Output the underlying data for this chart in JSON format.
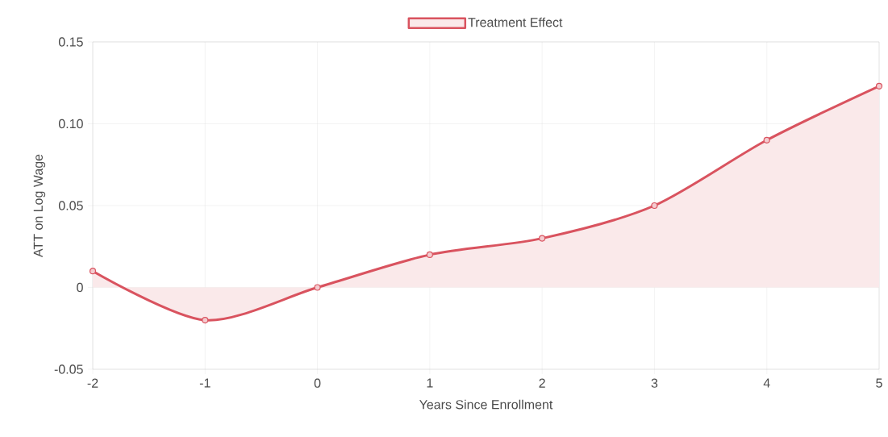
{
  "chart_data": {
    "type": "area",
    "xlabel": "Years Since Enrollment",
    "ylabel": "ATT on Log Wage",
    "x": [
      -2,
      -1,
      0,
      1,
      2,
      3,
      4,
      5
    ],
    "series": [
      {
        "name": "Treatment Effect",
        "color": "#d9535f",
        "values": [
          0.01,
          -0.02,
          0,
          0.02,
          0.03,
          0.05,
          0.09,
          0.123
        ]
      }
    ],
    "xlim": [
      -2,
      5
    ],
    "xticks": [
      -2,
      -1,
      0,
      1,
      2,
      3,
      4,
      5
    ],
    "ylim": [
      -0.05,
      0.15
    ],
    "yticks": [
      -0.05,
      0,
      {
        "value": 0.05,
        "label": "0.05"
      },
      {
        "value": 0.1,
        "label": "0.10"
      },
      0.15
    ],
    "grid": true,
    "legend": "top",
    "marker": "circle"
  }
}
